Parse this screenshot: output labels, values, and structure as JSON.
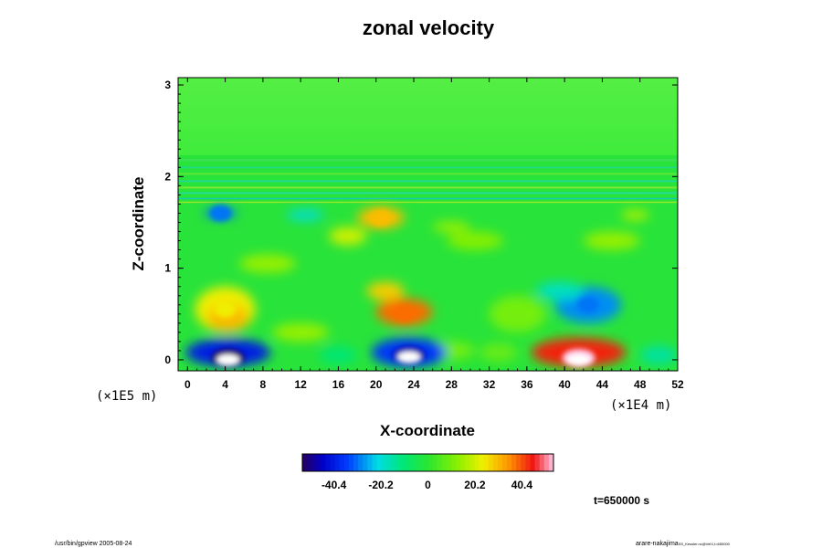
{
  "chart_data": {
    "type": "heatmap",
    "title": "zonal velocity",
    "xlabel": "X-coordinate",
    "ylabel": "Z-coordinate",
    "x_exponent_label": "(×1E4 m)",
    "y_exponent_label": "(×1E5 m)",
    "xlim": [
      -1,
      52
    ],
    "ylim": [
      -0.12,
      3.08
    ],
    "x_ticks": [
      "0",
      "4",
      "8",
      "12",
      "16",
      "20",
      "24",
      "28",
      "32",
      "36",
      "40",
      "44",
      "48",
      "52"
    ],
    "y_ticks": [
      "0",
      "1",
      "2",
      "3"
    ],
    "colorbar": {
      "range": [
        -54,
        54
      ],
      "ticks": [
        "-40.4",
        "-20.2",
        "0",
        "20.2",
        "40.4"
      ],
      "colormap": "rainbow"
    },
    "features": [
      {
        "x": 4.3,
        "z": 0.02,
        "value": -54,
        "label": "strong westward core"
      },
      {
        "x": 23.5,
        "z": 0.05,
        "value": -48,
        "label": "westward core"
      },
      {
        "x": 41.5,
        "z": 0.02,
        "value": 54,
        "label": "strong eastward core"
      },
      {
        "x": 4.0,
        "z": 0.55,
        "value": 24,
        "label": "eastward patch"
      },
      {
        "x": 23.0,
        "z": 0.5,
        "value": 38,
        "label": "eastward patch"
      },
      {
        "x": 42.5,
        "z": 0.6,
        "value": -30,
        "label": "westward patch"
      },
      {
        "x": 20.5,
        "z": 1.55,
        "value": 30,
        "label": "eastward patch"
      },
      {
        "x": 3.5,
        "z": 1.6,
        "value": -30,
        "label": "westward patch"
      }
    ],
    "time_label": "t=650000 s"
  },
  "footer": {
    "left": "/usr/bin/gpview 2005-08-24",
    "right_main": "arare-nakajima",
    "right_small": "SS_Kessler.nc@VelX,t=650000"
  },
  "colors": {
    "background_field": "#1ee63a",
    "upper_field": "#4df04a"
  }
}
